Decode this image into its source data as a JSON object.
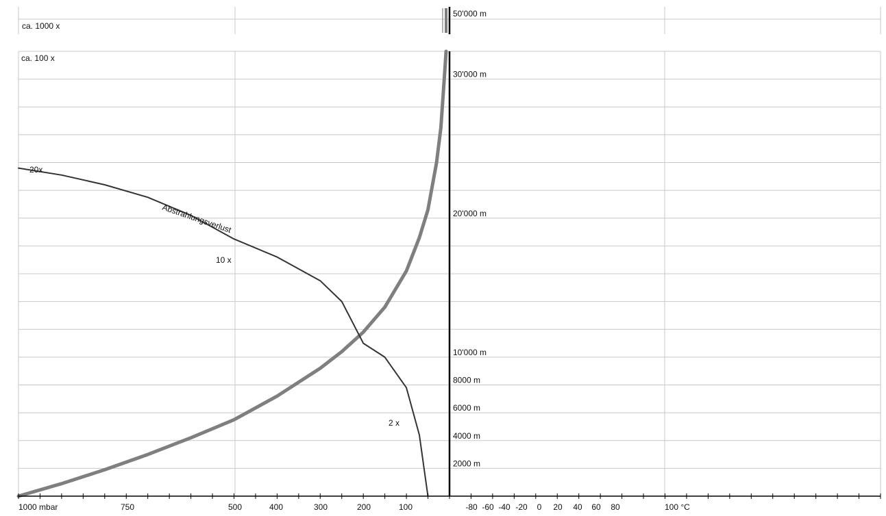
{
  "colors": {
    "grid": "#c8c8c8",
    "axis": "#000000",
    "pressure_curve": "#7f7f7f",
    "temperature_curve": "#333333",
    "text": "#111111"
  },
  "chart_data": {
    "type": "line",
    "y_altitude": {
      "unit": "m",
      "range_lower_panel": [
        0,
        32000
      ],
      "tick_labels": [
        "2000 m",
        "4000 m",
        "6000 m",
        "8000 m",
        "10'000 m",
        "20'000 m",
        "30'000 m"
      ],
      "upper_panel_label": "50'000 m"
    },
    "x_pressure": {
      "tick_labels": [
        "1000 mbar",
        "750",
        "500",
        "400",
        "300",
        "200",
        "100"
      ]
    },
    "x_temperature": {
      "tick_labels": [
        "-80",
        "-60",
        "-40",
        "-20",
        "0",
        "20",
        "40",
        "60",
        "80",
        "100 °C"
      ]
    },
    "band_labels": {
      "upper": "ca. 1000 x",
      "lower": "ca. 100 x"
    },
    "annotations": {
      "curve_name": "Abstrahlungsverlust",
      "ratio_labels": [
        "20x",
        "10 x",
        "2 x"
      ]
    },
    "series": [
      {
        "kind": "pressure",
        "points_mbar_m": [
          [
            1000,
            0
          ],
          [
            900,
            900
          ],
          [
            800,
            1900
          ],
          [
            700,
            3000
          ],
          [
            600,
            4200
          ],
          [
            500,
            5500
          ],
          [
            400,
            7200
          ],
          [
            300,
            9200
          ],
          [
            250,
            10400
          ],
          [
            200,
            11800
          ],
          [
            150,
            13600
          ],
          [
            100,
            16200
          ],
          [
            70,
            18600
          ],
          [
            50,
            20600
          ],
          [
            30,
            24000
          ],
          [
            20,
            26500
          ],
          [
            10,
            31000
          ],
          [
            8,
            32000
          ]
        ]
      },
      {
        "kind": "temperature",
        "points_mbar_m": [
          [
            1000,
            23600
          ],
          [
            900,
            23100
          ],
          [
            800,
            22400
          ],
          [
            700,
            21500
          ],
          [
            600,
            20200
          ],
          [
            500,
            18500
          ],
          [
            400,
            17200
          ],
          [
            300,
            15500
          ],
          [
            250,
            14000
          ],
          [
            200,
            11000
          ],
          [
            150,
            10000
          ],
          [
            100,
            7800
          ],
          [
            70,
            4400
          ],
          [
            50,
            0
          ]
        ]
      }
    ]
  }
}
